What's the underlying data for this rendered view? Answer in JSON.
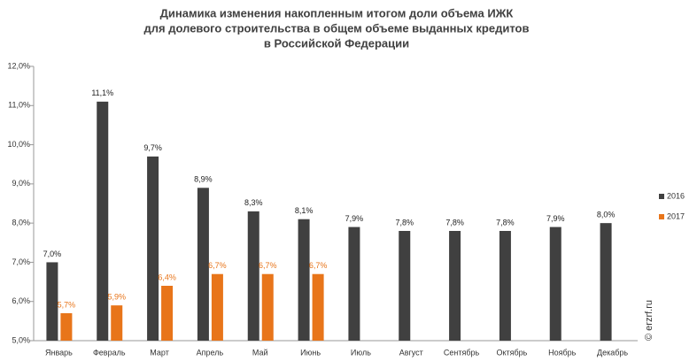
{
  "chart_data": {
    "type": "bar",
    "title": [
      "Динамика изменения накопленным итогом доли объема ИЖК",
      "для долевого строительства  в общем объеме выданных кредитов",
      "в Российской  Федерации"
    ],
    "categories": [
      "Январь",
      "Февраль",
      "Март",
      "Апрель",
      "Май",
      "Июнь",
      "Июль",
      "Август",
      "Сентябрь",
      "Октябрь",
      "Ноябрь",
      "Декабрь"
    ],
    "series": [
      {
        "name": "2016",
        "color": "#404040",
        "values": [
          7.0,
          11.1,
          9.7,
          8.9,
          8.3,
          8.1,
          7.9,
          7.8,
          7.8,
          7.8,
          7.9,
          8.0
        ],
        "value_labels": [
          "7,0%",
          "11,1%",
          "9,7%",
          "8,9%",
          "8,3%",
          "8,1%",
          "7,9%",
          "7,8%",
          "7,8%",
          "7,8%",
          "7,9%",
          "8,0%"
        ]
      },
      {
        "name": "2017",
        "color": "#e8751a",
        "values": [
          5.7,
          5.9,
          6.4,
          6.7,
          6.7,
          6.7,
          null,
          null,
          null,
          null,
          null,
          null
        ],
        "value_labels": [
          "5,7%",
          "5,9%",
          "6,4%",
          "6,7%",
          "6,7%",
          "6,7%",
          null,
          null,
          null,
          null,
          null,
          null
        ]
      }
    ],
    "ylim": [
      5,
      12
    ],
    "yticks": [
      {
        "value": 5,
        "label": "5,0%"
      },
      {
        "value": 6,
        "label": "6,0%"
      },
      {
        "value": 7,
        "label": "7,0%"
      },
      {
        "value": 8,
        "label": "8,0%"
      },
      {
        "value": 9,
        "label": "9,0%"
      },
      {
        "value": 10,
        "label": "10,0%"
      },
      {
        "value": 11,
        "label": "11,0%"
      },
      {
        "value": 12,
        "label": "12,0%"
      }
    ],
    "grid": false,
    "legend": "right",
    "watermark": "© erzrf.ru"
  }
}
